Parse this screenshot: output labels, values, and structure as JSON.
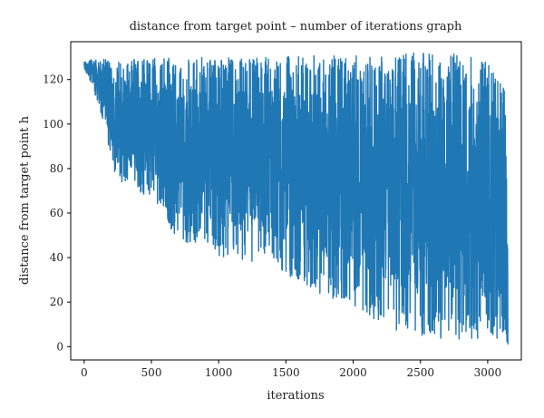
{
  "chart_data": {
    "type": "line",
    "title": "distance from target point – number of iterations graph",
    "xlabel": "iterations",
    "ylabel": "distance from target point h",
    "xlim": [
      -100,
      3250
    ],
    "ylim": [
      -6,
      137
    ],
    "xticks": [
      0,
      500,
      1000,
      1500,
      2000,
      2500,
      3000
    ],
    "yticks": [
      0,
      20,
      40,
      60,
      80,
      100,
      120
    ],
    "grid": false,
    "legend": "none",
    "series": [
      {
        "color": "#1f77b4",
        "x_range": [
          0,
          3150
        ],
        "n_points": 3150,
        "lower_envelope": [
          [
            0,
            125
          ],
          [
            60,
            117
          ],
          [
            150,
            100
          ],
          [
            200,
            84
          ],
          [
            250,
            74
          ],
          [
            400,
            70
          ],
          [
            600,
            61
          ],
          [
            650,
            52
          ],
          [
            700,
            46
          ],
          [
            900,
            46
          ],
          [
            1000,
            40
          ],
          [
            1200,
            38
          ],
          [
            1400,
            36
          ],
          [
            1500,
            32
          ],
          [
            1700,
            25
          ],
          [
            1800,
            22
          ],
          [
            2000,
            18
          ],
          [
            2100,
            14
          ],
          [
            2300,
            8
          ],
          [
            2400,
            5
          ],
          [
            2600,
            4
          ],
          [
            2800,
            2
          ],
          [
            3000,
            3
          ],
          [
            3100,
            3
          ],
          [
            3150,
            1
          ]
        ],
        "upper_envelope": [
          [
            0,
            128
          ],
          [
            50,
            129
          ],
          [
            200,
            129
          ],
          [
            500,
            130
          ],
          [
            1000,
            130
          ],
          [
            1500,
            131
          ],
          [
            2000,
            131
          ],
          [
            2500,
            132
          ],
          [
            2900,
            131
          ],
          [
            3000,
            128
          ],
          [
            3100,
            118
          ],
          [
            3150,
            114
          ]
        ],
        "final_value": 1
      }
    ]
  }
}
